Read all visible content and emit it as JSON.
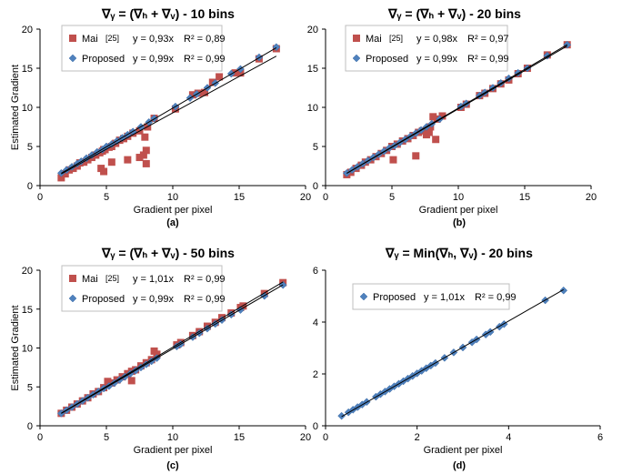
{
  "colors": {
    "mai": "#c0504d",
    "proposed": "#4f81bd",
    "fit": "#000000"
  },
  "chart_data": [
    {
      "type": "scatter",
      "panel_label": "(a)",
      "title": "∇ᵧ = (∇ₕ + ∇ᵥ) - 10 bins",
      "xlabel": "Gradient per pixel",
      "ylabel": "Estimated Gradient",
      "xlim": [
        0,
        20
      ],
      "ylim": [
        0,
        20
      ],
      "xticks": [
        "0",
        "5",
        "10",
        "15",
        "20"
      ],
      "yticks": [
        "0",
        "5",
        "10",
        "15",
        "20"
      ],
      "legend": [
        {
          "name": "Mai",
          "ref": "[25]",
          "eq": "y = 0,93x",
          "r2": "R² = 0,89"
        },
        {
          "name": "Proposed",
          "ref": "",
          "eq": "y = 0,99x",
          "r2": "R² = 0,99"
        }
      ],
      "series": [
        {
          "name": "Mai",
          "marker": "square",
          "slope": 0.93,
          "x": [
            1.6,
            1.9,
            2.2,
            2.5,
            2.8,
            3.0,
            3.3,
            3.6,
            3.9,
            4.2,
            4.5,
            4.7,
            4.8,
            4.9,
            5.2,
            5.4,
            5.7,
            6.0,
            6.3,
            6.6,
            7.0,
            7.5,
            7.9,
            8.0,
            8.1,
            8.6,
            10.2,
            11.5,
            11.9,
            12.4,
            13.0,
            13.5,
            14.7,
            15.1,
            16.5,
            17.8,
            4.6,
            4.8,
            5.4,
            6.6,
            7.5,
            7.8,
            8.0
          ],
          "y": [
            1.0,
            1.5,
            2.0,
            2.2,
            2.5,
            2.9,
            3.0,
            3.3,
            3.6,
            3.9,
            4.2,
            4.4,
            4.6,
            4.6,
            4.9,
            5.0,
            5.4,
            5.8,
            6.0,
            6.3,
            6.7,
            7.0,
            6.2,
            4.5,
            7.5,
            8.6,
            9.8,
            11.6,
            11.8,
            11.9,
            13.2,
            13.9,
            14.4,
            14.4,
            16.2,
            17.5,
            2.2,
            1.8,
            3.0,
            3.3,
            3.6,
            3.9,
            2.8
          ]
        },
        {
          "name": "Proposed",
          "marker": "diamond",
          "slope": 0.99,
          "x": [
            1.6,
            2.0,
            2.4,
            2.8,
            3.1,
            3.5,
            3.9,
            4.3,
            4.7,
            5.0,
            5.4,
            5.8,
            6.2,
            6.6,
            7.0,
            7.6,
            8.2,
            8.6,
            10.2,
            11.3,
            11.8,
            12.6,
            13.2,
            14.4,
            15.1,
            16.5,
            17.8
          ],
          "y": [
            1.6,
            2.0,
            2.4,
            2.8,
            3.1,
            3.5,
            3.9,
            4.3,
            4.6,
            5.0,
            5.3,
            5.7,
            6.1,
            6.5,
            6.9,
            7.5,
            8.1,
            8.6,
            10.1,
            11.2,
            11.7,
            12.5,
            13.1,
            14.3,
            14.9,
            16.4,
            17.7
          ]
        }
      ]
    },
    {
      "type": "scatter",
      "panel_label": "(b)",
      "title": "∇ᵧ = (∇ₕ + ∇ᵥ) - 20 bins",
      "xlabel": "Gradient per pixel",
      "ylabel": "",
      "xlim": [
        0,
        20
      ],
      "ylim": [
        0,
        20
      ],
      "xticks": [
        "0",
        "5",
        "10",
        "15",
        "20"
      ],
      "yticks": [
        "0",
        "5",
        "10",
        "15",
        "20"
      ],
      "legend": [
        {
          "name": "Mai",
          "ref": "[25]",
          "eq": "y = 0,98x",
          "r2": "R² = 0,97"
        },
        {
          "name": "Proposed",
          "ref": "",
          "eq": "y = 0,99x",
          "r2": "R² = 0,99"
        }
      ],
      "series": [
        {
          "name": "Mai",
          "marker": "square",
          "slope": 0.98,
          "x": [
            1.6,
            1.9,
            2.3,
            2.7,
            3.0,
            3.4,
            3.8,
            4.2,
            4.6,
            5.0,
            5.4,
            5.8,
            6.2,
            6.6,
            7.0,
            7.3,
            7.6,
            7.9,
            8.1,
            8.4,
            8.8,
            10.2,
            10.6,
            11.6,
            12.0,
            12.6,
            13.2,
            13.8,
            14.5,
            15.2,
            16.7,
            18.2,
            5.1,
            6.8,
            7.8,
            8.3
          ],
          "y": [
            1.4,
            1.7,
            2.2,
            2.6,
            3.0,
            3.3,
            3.7,
            4.1,
            4.5,
            5.0,
            5.3,
            5.7,
            6.0,
            6.4,
            6.8,
            7.0,
            6.5,
            7.5,
            8.8,
            8.5,
            8.9,
            10.0,
            10.4,
            11.5,
            11.8,
            12.4,
            13.0,
            13.5,
            14.3,
            15.0,
            16.7,
            18.0,
            3.3,
            3.8,
            6.8,
            5.9
          ]
        },
        {
          "name": "Proposed",
          "marker": "diamond",
          "slope": 0.99,
          "x": [
            1.6,
            2.0,
            2.4,
            2.8,
            3.2,
            3.6,
            4.0,
            4.4,
            4.8,
            5.2,
            5.6,
            6.0,
            6.4,
            6.8,
            7.2,
            7.6,
            8.0,
            8.6,
            10.2,
            10.6,
            11.6,
            12.0,
            12.6,
            13.2,
            13.8,
            14.5,
            15.2,
            16.7,
            18.2
          ],
          "y": [
            1.6,
            2.0,
            2.4,
            2.8,
            3.2,
            3.6,
            4.0,
            4.4,
            4.8,
            5.1,
            5.5,
            5.9,
            6.3,
            6.7,
            7.1,
            7.5,
            7.9,
            8.5,
            10.1,
            10.5,
            11.5,
            11.9,
            12.5,
            13.1,
            13.7,
            14.4,
            15.0,
            16.6,
            18.0
          ]
        }
      ]
    },
    {
      "type": "scatter",
      "panel_label": "(c)",
      "title": "∇ᵧ = (∇ₕ + ∇ᵥ) - 50 bins",
      "xlabel": "Gradient per pixel",
      "ylabel": "Estimated Gradient",
      "xlim": [
        0,
        20
      ],
      "ylim": [
        0,
        20
      ],
      "xticks": [
        "0",
        "5",
        "10",
        "15",
        "20"
      ],
      "yticks": [
        "0",
        "5",
        "10",
        "15",
        "20"
      ],
      "legend": [
        {
          "name": "Mai",
          "ref": "[25]",
          "eq": "y = 1,01x",
          "r2": "R² = 0,99"
        },
        {
          "name": "Proposed",
          "ref": "",
          "eq": "y = 0,99x",
          "r2": "R² = 0,99"
        }
      ],
      "series": [
        {
          "name": "Mai",
          "marker": "square",
          "slope": 1.01,
          "x": [
            1.6,
            2.0,
            2.4,
            2.8,
            3.2,
            3.6,
            4.0,
            4.4,
            4.8,
            5.1,
            5.4,
            5.8,
            6.2,
            6.6,
            6.9,
            7.2,
            7.6,
            8.0,
            8.4,
            8.6,
            8.8,
            10.3,
            10.6,
            11.5,
            12.0,
            12.6,
            13.2,
            13.7,
            14.4,
            15.1,
            15.3,
            16.9,
            18.3,
            6.9
          ],
          "y": [
            1.6,
            2.0,
            2.4,
            2.8,
            3.2,
            3.6,
            4.1,
            4.4,
            4.9,
            5.7,
            5.5,
            5.9,
            6.3,
            6.7,
            7.0,
            7.2,
            7.7,
            8.1,
            8.5,
            9.6,
            9.2,
            10.4,
            10.7,
            11.6,
            12.1,
            12.8,
            13.3,
            13.9,
            14.5,
            15.2,
            15.4,
            17.0,
            18.4,
            5.8
          ]
        },
        {
          "name": "Proposed",
          "marker": "diamond",
          "slope": 0.99,
          "x": [
            1.6,
            2.0,
            2.4,
            2.8,
            3.2,
            3.6,
            4.0,
            4.4,
            4.8,
            5.2,
            5.6,
            6.0,
            6.4,
            6.8,
            7.2,
            7.6,
            8.0,
            8.4,
            8.8,
            10.3,
            10.6,
            11.5,
            12.0,
            12.6,
            13.2,
            13.7,
            14.4,
            15.1,
            16.9,
            18.3
          ],
          "y": [
            1.6,
            2.0,
            2.4,
            2.8,
            3.2,
            3.6,
            4.0,
            4.4,
            4.8,
            5.1,
            5.5,
            5.9,
            6.3,
            6.7,
            7.1,
            7.5,
            7.9,
            8.3,
            8.7,
            10.2,
            10.5,
            11.4,
            11.9,
            12.5,
            13.1,
            13.6,
            14.3,
            14.9,
            16.7,
            18.1
          ]
        }
      ]
    },
    {
      "type": "scatter",
      "panel_label": "(d)",
      "title": "∇ᵧ = Min(∇ₕ, ∇ᵥ) - 20 bins",
      "xlabel": "Gradient per pixel",
      "ylabel": "",
      "xlim": [
        0,
        6
      ],
      "ylim": [
        0,
        6
      ],
      "xticks": [
        "0",
        "2",
        "4",
        "6"
      ],
      "yticks": [
        "0",
        "2",
        "4",
        "6"
      ],
      "legend": [
        {
          "name": "Proposed",
          "ref": "",
          "eq": "y = 1,01x",
          "r2": "R² = 0,99"
        }
      ],
      "series": [
        {
          "name": "Proposed",
          "marker": "diamond",
          "slope": 1.01,
          "x": [
            0.35,
            0.5,
            0.6,
            0.7,
            0.8,
            0.9,
            1.1,
            1.2,
            1.3,
            1.4,
            1.5,
            1.6,
            1.7,
            1.8,
            1.9,
            2.0,
            2.1,
            2.2,
            2.3,
            2.4,
            2.6,
            2.8,
            3.0,
            3.2,
            3.3,
            3.5,
            3.6,
            3.8,
            3.9,
            4.8,
            5.2
          ],
          "y": [
            0.38,
            0.52,
            0.62,
            0.72,
            0.82,
            0.92,
            1.12,
            1.22,
            1.32,
            1.42,
            1.52,
            1.62,
            1.72,
            1.82,
            1.92,
            2.02,
            2.12,
            2.22,
            2.32,
            2.42,
            2.62,
            2.83,
            3.02,
            3.22,
            3.33,
            3.52,
            3.62,
            3.82,
            3.92,
            4.84,
            5.22
          ]
        }
      ]
    }
  ]
}
